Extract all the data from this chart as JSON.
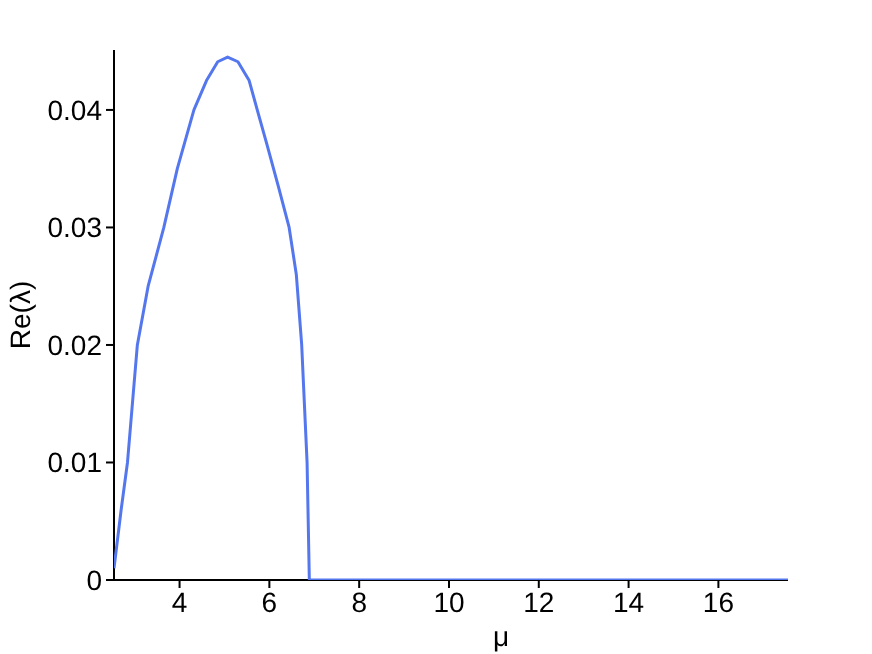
{
  "chart_data": {
    "type": "line",
    "xlabel": "μ",
    "ylabel": "Re(λ)",
    "x": [
      2.54,
      2.7,
      2.84,
      2.95,
      3.06,
      3.3,
      3.65,
      3.95,
      4.32,
      4.6,
      4.85,
      5.07,
      5.3,
      5.55,
      5.73,
      5.95,
      6.2,
      6.44,
      6.6,
      6.72,
      6.84,
      6.89,
      8,
      10,
      12,
      14,
      16,
      17.55
    ],
    "series": [
      {
        "color": "#5577ee",
        "values": [
          0.001,
          0.006,
          0.01,
          0.015,
          0.02,
          0.025,
          0.03,
          0.035,
          0.04,
          0.0425,
          0.0441,
          0.0445,
          0.0441,
          0.0425,
          0.04,
          0.037,
          0.0335,
          0.03,
          0.026,
          0.02,
          0.01,
          0,
          0,
          0,
          0,
          0,
          0,
          0
        ]
      }
    ],
    "xlim": [
      2.54,
      17.55
    ],
    "xticks": [
      4,
      6,
      8,
      10,
      12,
      14,
      16
    ],
    "ylim": [
      0,
      0.0451
    ],
    "yticks": [
      0,
      0.01,
      0.02,
      0.03,
      0.04
    ],
    "grid": false,
    "legend": false,
    "marker": "none",
    "line_style": "solid"
  }
}
